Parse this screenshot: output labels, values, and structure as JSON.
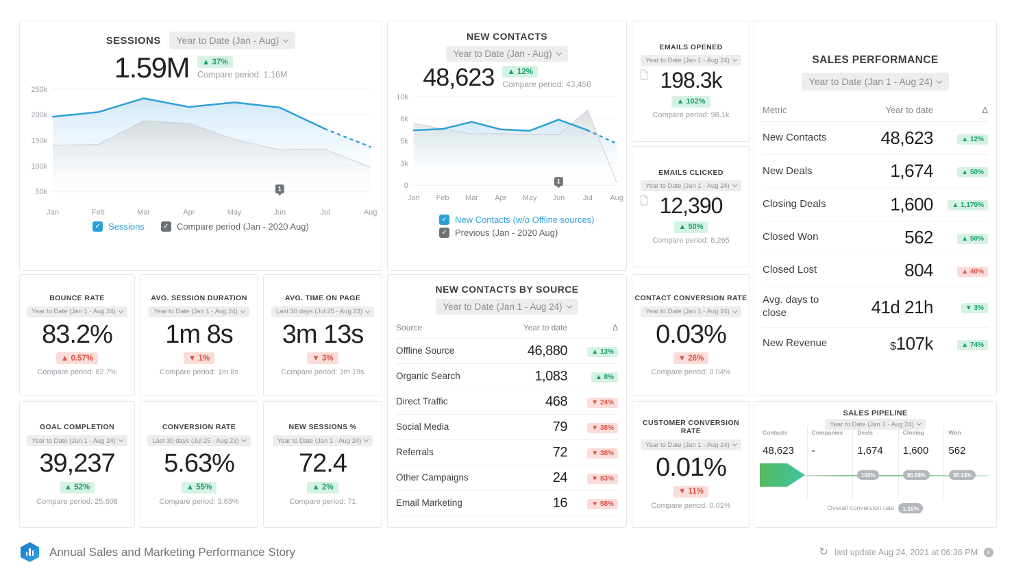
{
  "colors": {
    "accent_blue": "#2d9fd8",
    "green_text": "#17a268",
    "green_bg": "#d5f2e4",
    "red_text": "#dd5347",
    "red_bg": "#fadcd9",
    "muted": "#9aa0a6",
    "funnel_green": "#58b95e",
    "funnel_teal": "#3fc3a4"
  },
  "sessions": {
    "title": "SESSIONS",
    "period": "Year to Date (Jan - Aug)",
    "value": "1.59M",
    "delta": {
      "dir": "up",
      "text": "37%",
      "tone": "green"
    },
    "compare": "Compare period: 1.16M",
    "legend": [
      {
        "label": "Sessions",
        "box": "#2d9fd8",
        "text": "#2d9fd8"
      },
      {
        "label": "Compare period (Jan - 2020 Aug)",
        "box": "#6d7175",
        "text": "#5f6368"
      }
    ],
    "chart": {
      "type": "line-area",
      "accent": "#2d9fd8",
      "unit": "k",
      "x": [
        "Jan",
        "Feb",
        "Mar",
        "Apr",
        "May",
        "Jun",
        "Jul",
        "Aug"
      ],
      "y_min": 50,
      "y_max": 250,
      "y_ticks": [
        {
          "v": 250,
          "label": "250k"
        },
        {
          "v": 200,
          "label": "200k"
        },
        {
          "v": 150,
          "label": "150k"
        },
        {
          "v": 100,
          "label": "100k"
        },
        {
          "v": 50,
          "label": "50k"
        }
      ],
      "series": [
        {
          "name": "Sessions",
          "values": [
            196,
            205,
            232,
            215,
            224,
            214,
            172,
            137
          ],
          "dashed_from": 6
        },
        {
          "name": "Compare period (Jan - 2020 Aug)",
          "values": [
            140,
            142,
            188,
            183,
            152,
            131,
            132,
            97
          ]
        }
      ],
      "annotation": {
        "index": 5,
        "label": "1"
      }
    }
  },
  "new_contacts": {
    "title": "NEW CONTACTS",
    "period": "Year to Date (Jan - Aug)",
    "value": "48,623",
    "delta": {
      "dir": "up",
      "text": "12%",
      "tone": "green"
    },
    "compare": "Compare period: 43,458",
    "legend": [
      {
        "label": "New Contacts (w/o Offline sources)",
        "box": "#2d9fd8",
        "text": "#2d9fd8"
      },
      {
        "label": "Previous (Jan - 2020 Aug)",
        "box": "#6d7175",
        "text": "#5f6368"
      }
    ],
    "chart": {
      "type": "line-area",
      "accent": "#2d9fd8",
      "unit": "k",
      "x": [
        "Jan",
        "Feb",
        "Mar",
        "Apr",
        "May",
        "Jun",
        "Jul",
        "Aug"
      ],
      "y_min": 0,
      "y_max": 10,
      "y_ticks": [
        {
          "v": 10,
          "label": "10k"
        },
        {
          "v": 7.5,
          "label": "8k"
        },
        {
          "v": 5,
          "label": "5k"
        },
        {
          "v": 2.5,
          "label": "3k"
        },
        {
          "v": 0,
          "label": "0"
        }
      ],
      "series": [
        {
          "name": "New Contacts (w/o Offline sources)",
          "values": [
            6.2,
            6.35,
            7.15,
            6.3,
            6.15,
            7.4,
            6.2,
            4.7
          ],
          "dashed_from": 6
        },
        {
          "name": "Previous (Jan - 2020 Aug)",
          "values": [
            7.0,
            6.35,
            5.8,
            5.85,
            5.7,
            5.7,
            8.5,
            0.3
          ]
        }
      ],
      "annotation": {
        "index": 5,
        "label": "1"
      }
    }
  },
  "kpis": {
    "emails_opened": {
      "title": "EMAILS OPENED",
      "period": "Year to Date (Jan 1 - Aug 24)",
      "value": "198.3k",
      "delta": {
        "dir": "up",
        "text": "102%",
        "tone": "green"
      },
      "compare": "Compare period: 98.1k"
    },
    "emails_clicked": {
      "title": "EMAILS CLICKED",
      "period": "Year to Date (Jan 1 - Aug 24)",
      "value": "12,390",
      "delta": {
        "dir": "up",
        "text": "50%",
        "tone": "green"
      },
      "compare": "Compare period: 8,265"
    },
    "bounce_rate": {
      "title": "BOUNCE RATE",
      "period": "Year to Date (Jan 1 - Aug 24)",
      "value": "83.2%",
      "delta": {
        "dir": "up",
        "text": "0.57%",
        "tone": "red"
      },
      "compare": "Compare period: 82.7%"
    },
    "avg_session_duration": {
      "title": "AVG. SESSION DURATION",
      "period": "Year to Date (Jan 1 - Aug 24)",
      "value": "1m 8s",
      "delta": {
        "dir": "down",
        "text": "1%",
        "tone": "red"
      },
      "compare": "Compare period: 1m 8s"
    },
    "avg_time_on_page": {
      "title": "AVG. TIME ON PAGE",
      "period": "Last 30 days (Jul 25 - Aug 23)",
      "value": "3m 13s",
      "delta": {
        "dir": "down",
        "text": "3%",
        "tone": "red"
      },
      "compare": "Compare period: 3m 19s"
    },
    "goal_completion": {
      "title": "GOAL COMPLETION",
      "period": "Year to Date (Jan 1 - Aug 24)",
      "value": "39,237",
      "delta": {
        "dir": "up",
        "text": "52%",
        "tone": "green"
      },
      "compare": "Compare period: 25,808"
    },
    "conversion_rate": {
      "title": "CONVERSION RATE",
      "period": "Last 30 days (Jul 25 - Aug 23)",
      "value": "5.63%",
      "delta": {
        "dir": "up",
        "text": "55%",
        "tone": "green"
      },
      "compare": "Compare period: 3.63%"
    },
    "new_sessions_pct": {
      "title": "NEW SESSIONS %",
      "period": "Year to Date (Jan 1 - Aug 24)",
      "value": "72.4",
      "delta": {
        "dir": "up",
        "text": "2%",
        "tone": "green"
      },
      "compare": "Compare period: 71"
    },
    "contact_conversion_rate": {
      "title": "CONTACT CONVERSION RATE",
      "period": "Year to Date (Jan 1 - Aug 24)",
      "value": "0.03%",
      "delta": {
        "dir": "down",
        "text": "26%",
        "tone": "red"
      },
      "compare": "Compare period: 0.04%"
    },
    "customer_conversion_rate": {
      "title": "CUSTOMER CONVERSION RATE",
      "period": "Year to Date (Jan 1 - Aug 24)",
      "value": "0.01%",
      "delta": {
        "dir": "down",
        "text": "11%",
        "tone": "red"
      },
      "compare": "Compare period: 0.01%"
    }
  },
  "sales_performance": {
    "title": "SALES PERFORMANCE",
    "period": "Year to Date (Jan 1 - Aug 24)",
    "columns": [
      "Metric",
      "Year to date",
      "Δ"
    ],
    "rows": [
      {
        "name": "New Contacts",
        "value": "48,623",
        "delta": {
          "dir": "up",
          "text": "12%",
          "tone": "green"
        }
      },
      {
        "name": "New Deals",
        "value": "1,674",
        "delta": {
          "dir": "up",
          "text": "50%",
          "tone": "green"
        }
      },
      {
        "name": "Closing Deals",
        "value": "1,600",
        "delta": {
          "dir": "up",
          "text": "1,170%",
          "tone": "green"
        }
      },
      {
        "name": "Closed Won",
        "value": "562",
        "delta": {
          "dir": "up",
          "text": "50%",
          "tone": "green"
        }
      },
      {
        "name": "Closed Lost",
        "value": "804",
        "delta": {
          "dir": "up",
          "text": "40%",
          "tone": "red"
        }
      },
      {
        "name": "Avg. days to close",
        "value": "41d 21h",
        "delta": {
          "dir": "down",
          "text": "3%",
          "tone": "green"
        }
      },
      {
        "name": "New Revenue",
        "value": "107k",
        "value_prefix": "$",
        "delta": {
          "dir": "up",
          "text": "74%",
          "tone": "green"
        }
      }
    ]
  },
  "new_contacts_by_source": {
    "title": "NEW CONTACTS BY SOURCE",
    "period": "Year to Date (Jan 1 - Aug 24)",
    "columns": [
      "Source",
      "Year to date",
      "Δ"
    ],
    "rows": [
      {
        "name": "Offline Source",
        "value": "46,880",
        "delta": {
          "dir": "up",
          "text": "13%",
          "tone": "green"
        }
      },
      {
        "name": "Organic Search",
        "value": "1,083",
        "delta": {
          "dir": "up",
          "text": "8%",
          "tone": "green"
        }
      },
      {
        "name": "Direct Traffic",
        "value": "468",
        "delta": {
          "dir": "down",
          "text": "24%",
          "tone": "red"
        }
      },
      {
        "name": "Social Media",
        "value": "79",
        "delta": {
          "dir": "down",
          "text": "38%",
          "tone": "red"
        }
      },
      {
        "name": "Referrals",
        "value": "72",
        "delta": {
          "dir": "down",
          "text": "38%",
          "tone": "red"
        }
      },
      {
        "name": "Other Campaigns",
        "value": "24",
        "delta": {
          "dir": "down",
          "text": "83%",
          "tone": "red"
        }
      },
      {
        "name": "Email Marketing",
        "value": "16",
        "delta": {
          "dir": "down",
          "text": "58%",
          "tone": "red"
        }
      }
    ]
  },
  "pipeline": {
    "title": "SALES PIPELINE",
    "period": "Year to Date (Jan 1 - Aug 24)",
    "stages": [
      {
        "label": "Contacts",
        "value": "48,623"
      },
      {
        "label": "Companies",
        "value": "-"
      },
      {
        "label": "Deals",
        "value": "1,674",
        "conv": "100%"
      },
      {
        "label": "Closing",
        "value": "1,600",
        "conv": "95.58%"
      },
      {
        "label": "Won",
        "value": "562",
        "conv": "35.13%"
      }
    ],
    "overall_label": "Overall conversion rate",
    "overall_value": "1.16%"
  },
  "footer": {
    "brand": "Annual Sales and Marketing Performance Story",
    "last_update": "last update Aug 24, 2021 at 06:36 PM"
  }
}
